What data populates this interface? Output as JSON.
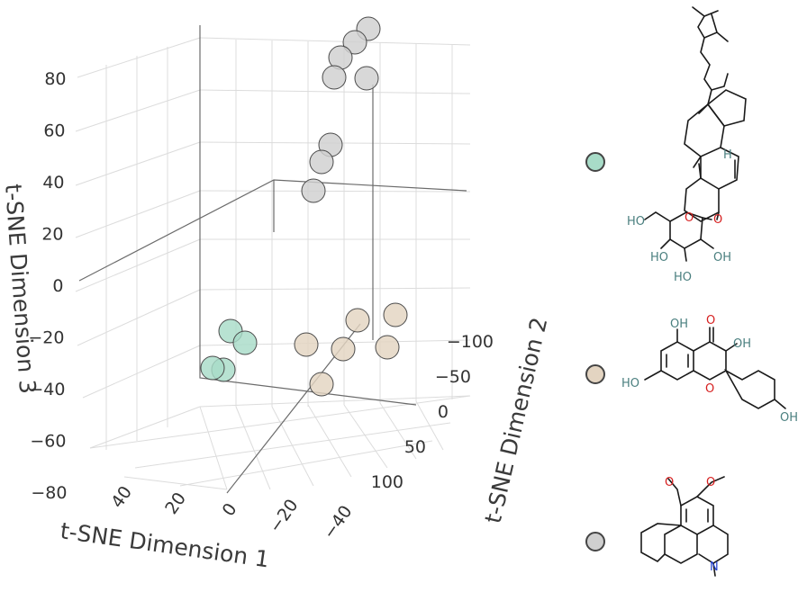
{
  "chart_data": {
    "type": "scatter3d",
    "axes": {
      "x": {
        "label": "t-SNE Dimension 1",
        "ticks": [
          40,
          20,
          0,
          -20,
          -40
        ],
        "tick_labels": [
          "40",
          "20",
          "0",
          "−20",
          "−40"
        ]
      },
      "y": {
        "label": "t-SNE Dimension 2",
        "ticks": [
          -100,
          -50,
          0,
          50,
          100
        ],
        "tick_labels": [
          "−100",
          "−50",
          "0",
          "50",
          "100"
        ]
      },
      "z": {
        "label": "t-SNE Dimension 3",
        "ticks": [
          80,
          60,
          40,
          20,
          0,
          -20,
          -40,
          -60,
          -80
        ],
        "tick_labels": [
          "80",
          "60",
          "40",
          "20",
          "0",
          "−20",
          "−40",
          "−60",
          "−80"
        ]
      }
    },
    "grid": true,
    "legend_placement": "right",
    "series": [
      {
        "color": "#a8dcc8",
        "structure": "steroid glycoside",
        "points": [
          {
            "dim1": 35,
            "dim2": -30,
            "dim3": -20
          },
          {
            "dim1": 30,
            "dim2": -45,
            "dim3": -25
          },
          {
            "dim1": 38,
            "dim2": -15,
            "dim3": -40
          },
          {
            "dim1": 33,
            "dim2": -25,
            "dim3": -42
          }
        ]
      },
      {
        "color": "#e3d4c1",
        "structure": "flavonol",
        "points": [
          {
            "dim1": -25,
            "dim2": -20,
            "dim3": -30
          },
          {
            "dim1": -30,
            "dim2": -60,
            "dim3": -22
          },
          {
            "dim1": -40,
            "dim2": -95,
            "dim3": -18
          },
          {
            "dim1": -35,
            "dim2": -65,
            "dim3": -35
          },
          {
            "dim1": -45,
            "dim2": -95,
            "dim3": -36
          },
          {
            "dim1": -30,
            "dim2": -15,
            "dim3": -55
          }
        ]
      },
      {
        "color": "#cfcfcf",
        "structure": "aporphine alkaloid",
        "points": [
          {
            "dim1": -5,
            "dim2": -70,
            "dim3": 95
          },
          {
            "dim1": -8,
            "dim2": -70,
            "dim3": 88
          },
          {
            "dim1": -2,
            "dim2": -60,
            "dim3": 82
          },
          {
            "dim1": 0,
            "dim2": -55,
            "dim3": 76
          },
          {
            "dim1": -10,
            "dim2": -75,
            "dim3": 75
          },
          {
            "dim1": 0,
            "dim2": -40,
            "dim3": 48
          },
          {
            "dim1": 2,
            "dim2": -35,
            "dim3": 42
          },
          {
            "dim1": 3,
            "dim2": -30,
            "dim3": 32
          }
        ]
      }
    ]
  },
  "legend": [
    {
      "color": "#a8dcc8",
      "icon": "steroid-glycoside-structure"
    },
    {
      "color": "#e3d4c1",
      "icon": "flavonol-structure"
    },
    {
      "color": "#cfcfcf",
      "icon": "aporphine-alkaloid-structure"
    }
  ],
  "chem": {
    "O": "O",
    "H": "H",
    "HO": "HO",
    "OH": "OH",
    "N": "N"
  }
}
